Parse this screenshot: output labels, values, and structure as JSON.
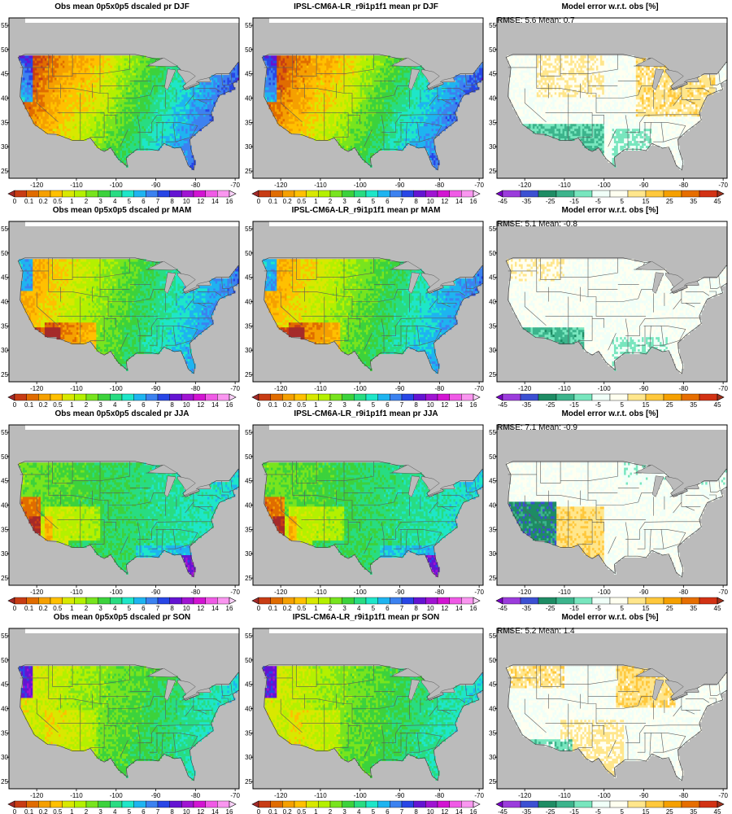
{
  "figure": {
    "panels": [
      {
        "title": "Obs mean 0p5x0p5 dscaled pr DJF",
        "kind": "precip",
        "pattern": "djf",
        "stats": ""
      },
      {
        "title": "IPSL-CM6A-LR_r9i1p1f1 mean pr DJF",
        "kind": "precip",
        "pattern": "djf",
        "stats": ""
      },
      {
        "title": "Model error w.r.t. obs [%]",
        "kind": "error",
        "pattern": "djf",
        "stats": "RMSE: 5.6   Mean: 0.7"
      },
      {
        "title": "Obs mean 0p5x0p5 dscaled pr MAM",
        "kind": "precip",
        "pattern": "mam",
        "stats": ""
      },
      {
        "title": "IPSL-CM6A-LR_r9i1p1f1 mean pr MAM",
        "kind": "precip",
        "pattern": "mam",
        "stats": ""
      },
      {
        "title": "Model error w.r.t. obs [%]",
        "kind": "error",
        "pattern": "mam",
        "stats": "RMSE: 5.1   Mean: -0.8"
      },
      {
        "title": "Obs mean 0p5x0p5 dscaled pr JJA",
        "kind": "precip",
        "pattern": "jja",
        "stats": ""
      },
      {
        "title": "IPSL-CM6A-LR_r9i1p1f1 mean pr JJA",
        "kind": "precip",
        "pattern": "jja",
        "stats": ""
      },
      {
        "title": "Model error w.r.t. obs [%]",
        "kind": "error",
        "pattern": "jja",
        "stats": "RMSE: 7.1   Mean: -0.9"
      },
      {
        "title": "Obs mean 0p5x0p5 dscaled pr SON",
        "kind": "precip",
        "pattern": "son",
        "stats": ""
      },
      {
        "title": "IPSL-CM6A-LR_r9i1p1f1 mean pr SON",
        "kind": "precip",
        "pattern": "son",
        "stats": ""
      },
      {
        "title": "Model error w.r.t. obs [%]",
        "kind": "error",
        "pattern": "son",
        "stats": "RMSE: 5.2   Mean: 1.4"
      }
    ],
    "lon_ticks": [
      "-120",
      "-110",
      "-100",
      "-90",
      "-80",
      "-70"
    ],
    "lat_ticks": [
      "25",
      "30",
      "35",
      "40",
      "45",
      "50",
      "55"
    ],
    "precip_colorbar": {
      "labels": [
        "0",
        "0.1",
        "0.2",
        "0.5",
        "1",
        "2",
        "3",
        "4",
        "5",
        "6",
        "7",
        "8",
        "10",
        "12",
        "14",
        "16"
      ],
      "colors": [
        "#a52a2a",
        "#c83c14",
        "#e06c00",
        "#f5a000",
        "#ffc000",
        "#d8e800",
        "#b4f000",
        "#78e41e",
        "#3cd23c",
        "#28dc82",
        "#1ee6c8",
        "#1eb4f0",
        "#3c82f0",
        "#2846e6",
        "#6414d2",
        "#a014d2",
        "#d214d2",
        "#f05ae6",
        "#fa96f0",
        "#fcd2fa"
      ]
    },
    "error_colorbar": {
      "labels": [
        "-45",
        "-35",
        "-25",
        "-15",
        "-5",
        "5",
        "15",
        "25",
        "35",
        "45"
      ],
      "colors": [
        "#7a00c8",
        "#9b3cdc",
        "#3c50d2",
        "#1e8c64",
        "#3cb48c",
        "#78e6be",
        "#f0fff8",
        "#fffff0",
        "#ffe68c",
        "#ffc83c",
        "#f5a000",
        "#e66e00",
        "#d23214",
        "#a0321e"
      ]
    },
    "land_color": "#bbbbbb"
  }
}
